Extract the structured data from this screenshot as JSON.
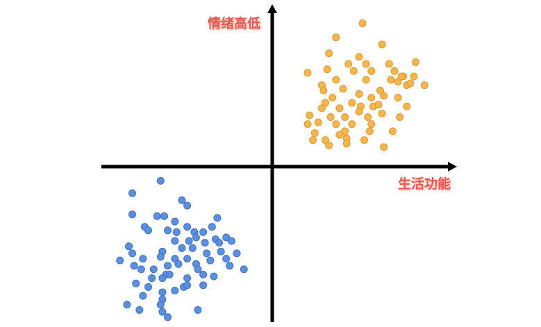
{
  "colors": {
    "axis": "#000000",
    "label": "#e5564c",
    "label_shadow": "#f2aaa6",
    "series_orange_fill": "#f7b64a",
    "series_orange_stroke": "#d99a36",
    "series_blue_fill": "#5b8fe0",
    "series_blue_stroke": "#3d6fc4"
  },
  "chart_data": {
    "type": "scatter",
    "title": "",
    "xlabel": "生活功能",
    "ylabel": "情绪高低",
    "xlim": [
      -10,
      10
    ],
    "ylim": [
      -10,
      10
    ],
    "grid": false,
    "legend": "none",
    "axes_through_origin": true,
    "series": [
      {
        "color": "#f7b64a",
        "points": [
          [
            5.1,
            8.1
          ],
          [
            3.6,
            7.3
          ],
          [
            6.2,
            6.9
          ],
          [
            3.2,
            6.4
          ],
          [
            4.9,
            6.2
          ],
          [
            4.3,
            5.8
          ],
          [
            5.3,
            5.8
          ],
          [
            6.6,
            5.8
          ],
          [
            8.1,
            5.9
          ],
          [
            3.1,
            5.5
          ],
          [
            2.0,
            5.3
          ],
          [
            4.6,
            5.4
          ],
          [
            5.6,
            5.4
          ],
          [
            6.9,
            5.4
          ],
          [
            7.4,
            5.1
          ],
          [
            8.0,
            5.1
          ],
          [
            7.3,
            5.1
          ],
          [
            7.1,
            4.8
          ],
          [
            7.6,
            4.6
          ],
          [
            6.7,
            4.9
          ],
          [
            5.3,
            4.9
          ],
          [
            3.6,
            4.9
          ],
          [
            2.8,
            4.6
          ],
          [
            4.0,
            4.4
          ],
          [
            6.1,
            4.3
          ],
          [
            7.8,
            4.7
          ],
          [
            8.6,
            4.6
          ],
          [
            2.9,
            4.3
          ],
          [
            3.4,
            3.9
          ],
          [
            4.9,
            4.1
          ],
          [
            6.3,
            4.0
          ],
          [
            5.6,
            3.9
          ],
          [
            7.1,
            3.9
          ],
          [
            3.0,
            3.6
          ],
          [
            4.5,
            3.6
          ],
          [
            5.7,
            3.4
          ],
          [
            2.8,
            3.3
          ],
          [
            3.8,
            3.3
          ],
          [
            5.0,
            3.4
          ],
          [
            6.0,
            3.5
          ],
          [
            7.6,
            3.4
          ],
          [
            4.9,
            3.1
          ],
          [
            6.2,
            3.0
          ],
          [
            2.1,
            2.9
          ],
          [
            3.3,
            2.8
          ],
          [
            4.1,
            2.8
          ],
          [
            5.4,
            2.8
          ],
          [
            7.2,
            2.8
          ],
          [
            2.6,
            2.5
          ],
          [
            3.6,
            2.4
          ],
          [
            4.5,
            2.4
          ],
          [
            5.6,
            2.4
          ],
          [
            2.0,
            2.4
          ],
          [
            4.1,
            2.0
          ],
          [
            5.5,
            2.0
          ],
          [
            6.8,
            2.0
          ],
          [
            2.4,
            1.9
          ],
          [
            3.8,
            1.8
          ],
          [
            4.2,
            1.6
          ],
          [
            3.0,
            1.5
          ],
          [
            2.3,
            1.5
          ],
          [
            5.2,
            1.5
          ],
          [
            4.2,
            1.3
          ],
          [
            3.2,
            1.2
          ],
          [
            6.3,
            1.1
          ]
        ]
      },
      {
        "color": "#5b8fe0",
        "points": [
          [
            -6.3,
            -0.8
          ],
          [
            -7.9,
            -1.5
          ],
          [
            -5.1,
            -1.9
          ],
          [
            -4.8,
            -2.2
          ],
          [
            -7.9,
            -2.7
          ],
          [
            -6.5,
            -2.8
          ],
          [
            -6.1,
            -2.8
          ],
          [
            -3.1,
            -2.9
          ],
          [
            -5.5,
            -3.1
          ],
          [
            -3.4,
            -3.4
          ],
          [
            -7.2,
            -3.4
          ],
          [
            -4.8,
            -3.4
          ],
          [
            -5.4,
            -3.7
          ],
          [
            -5.9,
            -3.6
          ],
          [
            -4.4,
            -3.7
          ],
          [
            -3.9,
            -3.7
          ],
          [
            -7.0,
            -3.6
          ],
          [
            -2.6,
            -4.0
          ],
          [
            -4.3,
            -4.0
          ],
          [
            -4.7,
            -4.2
          ],
          [
            -3.2,
            -4.1
          ],
          [
            -3.8,
            -4.3
          ],
          [
            -3.0,
            -4.3
          ],
          [
            -2.3,
            -4.2
          ],
          [
            -5.5,
            -4.2
          ],
          [
            -5.1,
            -4.6
          ],
          [
            -8.1,
            -4.5
          ],
          [
            -4.5,
            -4.6
          ],
          [
            -6.2,
            -4.8
          ],
          [
            -2.9,
            -4.8
          ],
          [
            -2.0,
            -4.9
          ],
          [
            -3.7,
            -4.9
          ],
          [
            -7.9,
            -4.9
          ],
          [
            -2.6,
            -5.2
          ],
          [
            -6.3,
            -5.1
          ],
          [
            -5.5,
            -5.2
          ],
          [
            -4.8,
            -5.2
          ],
          [
            -8.6,
            -5.3
          ],
          [
            -3.5,
            -5.3
          ],
          [
            -7.3,
            -5.2
          ],
          [
            -4.3,
            -5.5
          ],
          [
            -5.3,
            -5.5
          ],
          [
            -7.8,
            -5.6
          ],
          [
            -5.9,
            -5.6
          ],
          [
            -7.4,
            -5.8
          ],
          [
            -6.7,
            -5.8
          ],
          [
            -4.2,
            -5.8
          ],
          [
            -3.9,
            -6.1
          ],
          [
            -6.0,
            -6.1
          ],
          [
            -5.8,
            -6.1
          ],
          [
            -6.8,
            -6.3
          ],
          [
            -3.3,
            -6.2
          ],
          [
            -4.8,
            -6.3
          ],
          [
            -6.2,
            -6.3
          ],
          [
            -1.6,
            -5.8
          ],
          [
            -2.4,
            -5.6
          ],
          [
            -5.0,
            -6.8
          ],
          [
            -7.7,
            -6.6
          ],
          [
            -7.0,
            -6.8
          ],
          [
            -4.8,
            -6.7
          ],
          [
            -3.9,
            -6.7
          ],
          [
            -5.5,
            -7.0
          ],
          [
            -6.2,
            -7.1
          ],
          [
            -7.3,
            -7.3
          ],
          [
            -6.2,
            -7.5
          ],
          [
            -8.2,
            -7.8
          ],
          [
            -6.3,
            -7.8
          ],
          [
            -7.5,
            -8.1
          ],
          [
            -4.2,
            -8.1
          ],
          [
            -6.2,
            -8.2
          ],
          [
            -5.9,
            -8.5
          ]
        ]
      }
    ]
  }
}
